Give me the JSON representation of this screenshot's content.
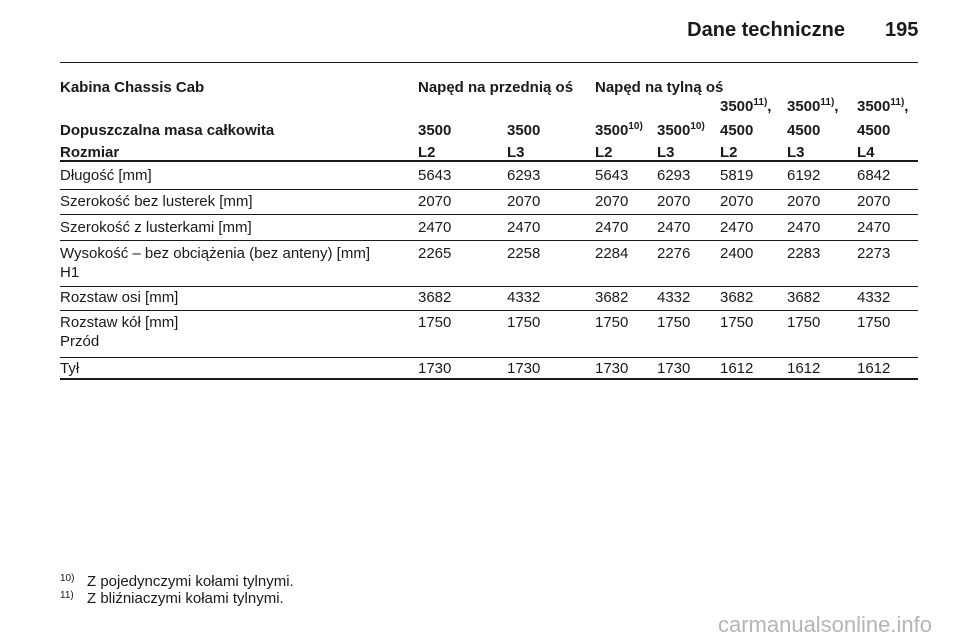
{
  "header": {
    "title": "Dane techniczne",
    "page": "195"
  },
  "table": {
    "group_header": {
      "label": "Kabina Chassis Cab",
      "front": "Napęd na przednią oś",
      "rear": "Napęd na tylną oś"
    },
    "mass": {
      "label": "Dopuszczalna masa całkowita",
      "cells": [
        {
          "value": 3500
        },
        {
          "value": 3500
        },
        {
          "value": 3500,
          "note": "10)"
        },
        {
          "value": 3500,
          "note": "10)"
        },
        {
          "value": 3500,
          "note": "11)",
          "sep": ",",
          "second": 4500
        },
        {
          "value": 3500,
          "note": "11)",
          "sep": ",",
          "second": 4500
        },
        {
          "value": 3500,
          "note": "11)",
          "sep": ",",
          "second": 4500
        }
      ]
    },
    "size": {
      "label": "Rozmiar",
      "values": [
        "L2",
        "L3",
        "L2",
        "L3",
        "L2",
        "L3",
        "L4"
      ]
    },
    "rows": [
      {
        "label": "Długość [mm]",
        "values": [
          5643,
          6293,
          5643,
          6293,
          5819,
          6192,
          6842
        ]
      },
      {
        "label": "Szerokość bez lusterek [mm]",
        "values": [
          2070,
          2070,
          2070,
          2070,
          2070,
          2070,
          2070
        ]
      },
      {
        "label": "Szerokość z lusterkami [mm]",
        "values": [
          2470,
          2470,
          2470,
          2470,
          2470,
          2470,
          2470
        ]
      },
      {
        "label": "Wysokość – bez obciążenia (bez anteny) [mm]",
        "sub": "H1",
        "values": [
          2265,
          2258,
          2284,
          2276,
          2400,
          2283,
          2273
        ]
      },
      {
        "label": "Rozstaw osi [mm]",
        "values": [
          3682,
          4332,
          3682,
          4332,
          3682,
          3682,
          4332
        ]
      },
      {
        "label": "Rozstaw kół [mm]",
        "sub": "Przód",
        "values": [
          1750,
          1750,
          1750,
          1750,
          1750,
          1750,
          1750
        ]
      },
      {
        "label": "Tył",
        "values": [
          1730,
          1730,
          1730,
          1730,
          1612,
          1612,
          1612
        ]
      }
    ]
  },
  "footnotes": [
    {
      "mark": "10)",
      "text": "Z pojedynczymi kołami tylnymi."
    },
    {
      "mark": "11)",
      "text": "Z bliźniaczymi kołami tylnymi."
    }
  ],
  "watermark": "carmanualsonline.info"
}
